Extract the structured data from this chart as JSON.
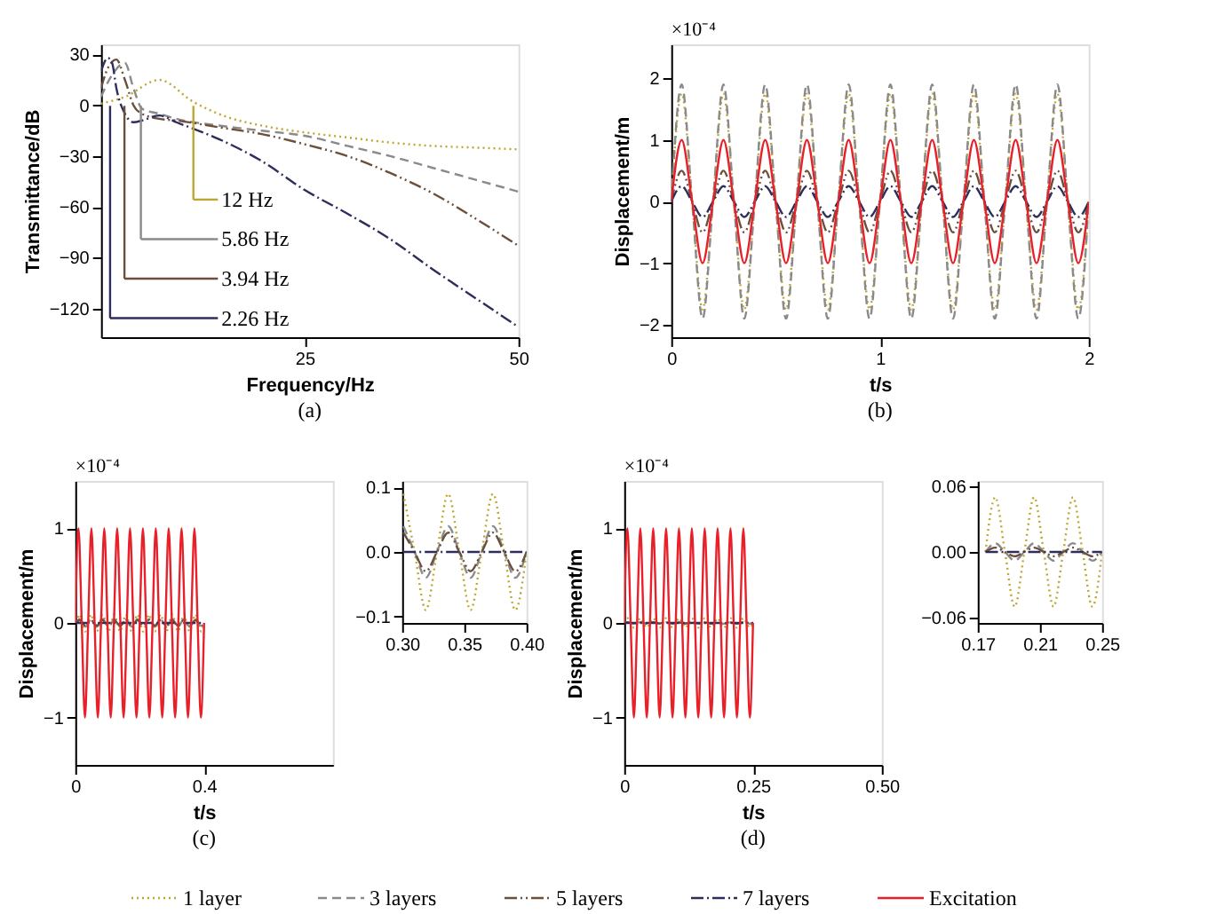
{
  "chart_data": [
    {
      "type": "line",
      "title": "(a)",
      "legend": "bottom",
      "xlabel": "Frequency/Hz",
      "ylabel": "Transmittance/dB",
      "xlim": [
        1.2,
        50
      ],
      "ylim": [
        -137,
        36
      ],
      "xticks": [
        25,
        50
      ],
      "yticks": [
        30,
        0,
        -30,
        -60,
        -90,
        -120
      ],
      "series": [
        {
          "name": "1 layer",
          "color": "#bfa630",
          "line_style": "dotted",
          "x": [
            1.2,
            4,
            8,
            12,
            16,
            20,
            25,
            30,
            35,
            40,
            45,
            50
          ],
          "values": [
            1,
            5,
            15,
            2,
            -7,
            -12,
            -16,
            -19,
            -22,
            -24,
            -25,
            -26
          ]
        },
        {
          "name": "3 layers",
          "color": "#8a8a8a",
          "line_style": "dashed",
          "x": [
            1.2,
            2.5,
            4,
            5,
            6,
            8,
            10,
            15,
            20,
            25,
            30,
            35,
            40,
            45,
            50
          ],
          "values": [
            5,
            18,
            25,
            10,
            -2,
            -5,
            -8,
            -12,
            -15,
            -18,
            -24,
            -30,
            -37,
            -44,
            -51
          ]
        },
        {
          "name": "5 layers",
          "color": "#6b4f3a",
          "line_style": "dashdotdot",
          "x": [
            1.2,
            2,
            3,
            4,
            5,
            6,
            8,
            10,
            15,
            20,
            25,
            30,
            35,
            40,
            45,
            50
          ],
          "values": [
            10,
            22,
            27,
            15,
            0,
            -5,
            -8,
            -9,
            -13,
            -17,
            -23,
            -30,
            -40,
            -52,
            -67,
            -83
          ]
        },
        {
          "name": "7 layers",
          "color": "#2e2e5e",
          "line_style": "dashdot",
          "x": [
            1.2,
            2,
            2.5,
            3,
            4,
            5,
            6,
            8,
            10,
            15,
            20,
            25,
            30,
            35,
            40,
            45,
            50
          ],
          "values": [
            20,
            28,
            25,
            10,
            -5,
            -10,
            -9,
            -6,
            -10,
            -20,
            -33,
            -50,
            -64,
            -79,
            -97,
            -114,
            -131
          ]
        }
      ],
      "ref_lines": [
        {
          "axis": "x",
          "value": 12,
          "label": "12 Hz",
          "color": "#bfa630"
        },
        {
          "axis": "x",
          "value": 5.86,
          "label": "5.86 Hz",
          "color": "#8a8a8a"
        },
        {
          "axis": "x",
          "value": 3.94,
          "label": "3.94 Hz",
          "color": "#6b4f3a"
        },
        {
          "axis": "x",
          "value": 2.26,
          "label": "2.26 Hz",
          "color": "#2e2e5e"
        }
      ]
    },
    {
      "type": "line",
      "title": "(b)",
      "xlabel": "t/s",
      "ylabel": "Displacement/m",
      "xlim": [
        0,
        2
      ],
      "ylim": [
        -2.2,
        2.55
      ],
      "xticks": [
        0,
        1,
        2
      ],
      "yticks": [
        -2,
        -1,
        0,
        1,
        2
      ],
      "annotations": [
        "×10⁻⁴"
      ],
      "x": [
        0,
        0.05,
        0.1,
        0.15,
        0.2,
        0.25,
        0.3,
        0.35,
        0.4,
        0.45,
        0.5,
        0.55,
        0.6,
        0.65,
        0.7,
        0.75,
        0.8,
        0.85,
        0.9,
        0.95,
        1,
        1.05,
        1.1,
        1.15,
        1.2,
        1.25,
        1.3,
        1.35,
        1.4,
        1.45,
        1.5,
        1.55,
        1.6,
        1.65,
        1.7,
        1.75,
        1.8,
        1.85,
        1.9,
        1.95,
        2
      ],
      "series": [
        {
          "name": "1 layer",
          "color": "#bfa630",
          "line_style": "dotted",
          "values": [
            0,
            1.75,
            0,
            -1.75,
            0,
            1.75,
            0,
            -1.75,
            0,
            1.75,
            0,
            -1.75,
            0,
            1.75,
            0,
            -1.75,
            0,
            1.75,
            0,
            -1.75,
            0,
            1.75,
            0,
            -1.75,
            0,
            1.75,
            0,
            -1.75,
            0,
            1.75,
            0,
            -1.75,
            0,
            1.75,
            0,
            -1.75,
            0,
            1.75,
            0,
            -1.75,
            0
          ]
        },
        {
          "name": "3 layers",
          "color": "#8a8a8a",
          "line_style": "dashed",
          "values": [
            0,
            1.9,
            0,
            -1.9,
            0,
            1.9,
            0,
            -1.9,
            0,
            1.9,
            0,
            -1.9,
            0,
            1.9,
            0,
            -1.9,
            0,
            1.9,
            0,
            -1.9,
            0,
            1.9,
            0,
            -1.9,
            0,
            1.9,
            0,
            -1.9,
            0,
            1.9,
            0,
            -1.9,
            0,
            1.9,
            0,
            -1.9,
            0,
            1.9,
            0,
            -1.9,
            0
          ]
        },
        {
          "name": "5 layers",
          "color": "#6b4f3a",
          "line_style": "dashdotdot",
          "values": [
            0,
            0.5,
            0,
            -0.5,
            0,
            0.5,
            0,
            -0.5,
            0,
            0.5,
            0,
            -0.5,
            0,
            0.5,
            0,
            -0.5,
            0,
            0.5,
            0,
            -0.5,
            0,
            0.5,
            0,
            -0.5,
            0,
            0.5,
            0,
            -0.5,
            0,
            0.5,
            0,
            -0.5,
            0,
            0.5,
            0,
            -0.5,
            0,
            0.5,
            0,
            -0.5,
            0
          ]
        },
        {
          "name": "7 layers",
          "color": "#2e2e5e",
          "line_style": "dashdot",
          "values": [
            0,
            0.25,
            0,
            -0.25,
            0,
            0.25,
            0,
            -0.25,
            0,
            0.25,
            0,
            -0.25,
            0,
            0.25,
            0,
            -0.25,
            0,
            0.25,
            0,
            -0.25,
            0,
            0.25,
            0,
            -0.25,
            0,
            0.25,
            0,
            -0.25,
            0,
            0.25,
            0,
            -0.25,
            0,
            0.25,
            0,
            -0.25,
            0,
            0.25,
            0,
            -0.25,
            0
          ]
        },
        {
          "name": "Excitation",
          "color": "#e8202a",
          "line_style": "solid",
          "values": [
            0,
            1,
            0,
            -1,
            0,
            1,
            0,
            -1,
            0,
            1,
            0,
            -1,
            0,
            1,
            0,
            -1,
            0,
            1,
            0,
            -1,
            0,
            1,
            0,
            -1,
            0,
            1,
            0,
            -1,
            0,
            1,
            0,
            -1,
            0,
            1,
            0,
            -1,
            0,
            1,
            0,
            -1,
            0
          ]
        }
      ]
    },
    {
      "type": "line",
      "title": "(c)",
      "xlabel": "t/s",
      "ylabel": "Displacement/m",
      "xlim": [
        0,
        0.8
      ],
      "ylim": [
        -1.5,
        1.5
      ],
      "xticks": [
        0,
        0.4
      ],
      "yticks": [
        -1,
        0,
        1
      ],
      "annotations": [
        "×10⁻⁴"
      ],
      "series": [
        {
          "name": "1 layer",
          "color": "#bfa630",
          "line_style": "dotted",
          "x": [
            0.004,
            0.013,
            0.022,
            0.031,
            0.04,
            0.049,
            0.058,
            0.067,
            0.076,
            0.085,
            0.094,
            0.103,
            0.112,
            0.121,
            0.13,
            0.139,
            0.148,
            0.157,
            0.166,
            0.175,
            0.184,
            0.193,
            0.202,
            0.211,
            0.22,
            0.229,
            0.238,
            0.247,
            0.256,
            0.265,
            0.274,
            0.283,
            0.292,
            0.301,
            0.31,
            0.319,
            0.328,
            0.337,
            0.346,
            0.355,
            0.364,
            0.373,
            0.382,
            0.391,
            0.4
          ],
          "values": [
            0,
            0.09,
            0,
            -0.09,
            0,
            0.09,
            0,
            -0.09,
            0,
            0.09,
            0,
            -0.09,
            0,
            0.09,
            0,
            -0.09,
            0,
            0.09,
            0,
            -0.09,
            0,
            0.09,
            0,
            -0.09,
            0,
            0.09,
            0,
            -0.09,
            0,
            0.09,
            0,
            -0.09,
            0,
            0.09,
            0,
            -0.09,
            0,
            0.09,
            0,
            -0.09,
            0,
            0.09,
            0,
            -0.09,
            0
          ]
        },
        {
          "name": "3 layers",
          "color": "#8a8a8a",
          "line_style": "dashed",
          "x": [
            0.004,
            0.013,
            0.022,
            0.031,
            0.04,
            0.049,
            0.058,
            0.067,
            0.076,
            0.085,
            0.094,
            0.103,
            0.112,
            0.121,
            0.13,
            0.139,
            0.148,
            0.157,
            0.166,
            0.175,
            0.184,
            0.193,
            0.202,
            0.211,
            0.22,
            0.229,
            0.238,
            0.247,
            0.256,
            0.265,
            0.274,
            0.283,
            0.292,
            0.301,
            0.31,
            0.319,
            0.328,
            0.337,
            0.346,
            0.355,
            0.364,
            0.373,
            0.382,
            0.391,
            0.4
          ],
          "values": [
            0,
            0.04,
            0,
            -0.04,
            0,
            0.04,
            0,
            -0.04,
            0,
            0.04,
            0,
            -0.04,
            0,
            0.04,
            0,
            -0.04,
            0,
            0.04,
            0,
            -0.04,
            0,
            0.04,
            0,
            -0.04,
            0,
            0.04,
            0,
            -0.04,
            0,
            0.04,
            0,
            -0.04,
            0,
            0.04,
            0,
            -0.04,
            0,
            0.04,
            0,
            -0.04,
            0,
            0.04,
            0,
            -0.04,
            0
          ]
        },
        {
          "name": "5 layers",
          "color": "#6b4f3a",
          "line_style": "dashdotdot",
          "x": [
            0.004,
            0.013,
            0.022,
            0.031,
            0.04,
            0.049,
            0.058,
            0.067,
            0.076,
            0.085,
            0.094,
            0.103,
            0.112,
            0.121,
            0.13,
            0.139,
            0.148,
            0.157,
            0.166,
            0.175,
            0.184,
            0.193,
            0.202,
            0.211,
            0.22,
            0.229,
            0.238,
            0.247,
            0.256,
            0.265,
            0.274,
            0.283,
            0.292,
            0.301,
            0.31,
            0.319,
            0.328,
            0.337,
            0.346,
            0.355,
            0.364,
            0.373,
            0.382,
            0.391,
            0.4
          ],
          "values": [
            0,
            0.03,
            0,
            -0.03,
            0,
            0.03,
            0,
            -0.03,
            0,
            0.03,
            0,
            -0.03,
            0,
            0.03,
            0,
            -0.03,
            0,
            0.03,
            0,
            -0.03,
            0,
            0.03,
            0,
            -0.03,
            0,
            0.03,
            0,
            -0.03,
            0,
            0.03,
            0,
            -0.03,
            0,
            0.03,
            0,
            -0.03,
            0,
            0.03,
            0,
            -0.03,
            0,
            0.03,
            0,
            -0.03,
            0
          ]
        },
        {
          "name": "7 layers",
          "color": "#2e2e5e",
          "line_style": "dashdot",
          "x": [
            0.004,
            0.4
          ],
          "values": [
            0,
            0
          ]
        },
        {
          "name": "Excitation",
          "color": "#e8202a",
          "line_style": "solid",
          "x": [
            0,
            0.01,
            0.02,
            0.03,
            0.04,
            0.05,
            0.06,
            0.07,
            0.08,
            0.09,
            0.1,
            0.11,
            0.12,
            0.13,
            0.14,
            0.15,
            0.16,
            0.17,
            0.18,
            0.19,
            0.2,
            0.21,
            0.22,
            0.23,
            0.24,
            0.25,
            0.26,
            0.27,
            0.28,
            0.29,
            0.3,
            0.31,
            0.32,
            0.33,
            0.34,
            0.35,
            0.36,
            0.37,
            0.38,
            0.39,
            0.4
          ],
          "values": [
            0,
            1,
            0,
            -1,
            0,
            1,
            0,
            -1,
            0,
            1,
            0,
            -1,
            0,
            1,
            0,
            -1,
            0,
            1,
            0,
            -1,
            0,
            1,
            0,
            -1,
            0,
            1,
            0,
            -1,
            0,
            1,
            0,
            -1,
            0,
            1,
            0,
            -1,
            0,
            1,
            0,
            -1,
            0
          ]
        }
      ]
    },
    {
      "type": "line",
      "xlim": [
        0.3,
        0.4
      ],
      "ylim": [
        -0.11,
        0.11
      ],
      "xticks": [
        {
          "value": 0.3,
          "label": "0.30"
        },
        0.35,
        {
          "value": 0.4,
          "label": "0.40"
        }
      ],
      "yticks": [
        -0.1,
        {
          "value": 0,
          "label": "0.0"
        },
        0.1
      ],
      "x": [
        0.301,
        0.31,
        0.319,
        0.328,
        0.337,
        0.346,
        0.355,
        0.364,
        0.373,
        0.382,
        0.391,
        0.4
      ],
      "series": [
        {
          "name": "1 layer",
          "color": "#bfa630",
          "line_style": "dotted",
          "values": [
            0.09,
            0,
            -0.09,
            0,
            0.09,
            0,
            -0.09,
            0,
            0.09,
            0,
            -0.09,
            0
          ]
        },
        {
          "name": "3 layers",
          "color": "#8a8a8a",
          "line_style": "dashed",
          "values": [
            0.04,
            0,
            -0.04,
            0,
            0.04,
            0,
            -0.04,
            0,
            0.04,
            0,
            -0.04,
            0
          ]
        },
        {
          "name": "5 layers",
          "color": "#6b4f3a",
          "line_style": "dashdotdot",
          "values": [
            0.03,
            0,
            -0.03,
            0,
            0.03,
            0,
            -0.03,
            0,
            0.03,
            0,
            -0.03,
            0
          ]
        },
        {
          "name": "7 layers",
          "color": "#2e2e5e",
          "line_style": "dashdot",
          "values": [
            0,
            0,
            0,
            0,
            0,
            0,
            0,
            0,
            0,
            0,
            0,
            0
          ]
        }
      ]
    },
    {
      "type": "line",
      "title": "(d)",
      "xlabel": "t/s",
      "ylabel": "Displacement/m",
      "xlim": [
        0,
        0.5
      ],
      "ylim": [
        -1.5,
        1.5
      ],
      "xticks": [
        0,
        0.25,
        {
          "value": 0.5,
          "label": "0.50"
        }
      ],
      "yticks": [
        -1,
        0,
        1
      ],
      "annotations": [
        "×10⁻⁴"
      ],
      "x": [
        0,
        0.00625,
        0.0125,
        0.01875,
        0.025,
        0.03125,
        0.0375,
        0.04375,
        0.05,
        0.05625,
        0.0625,
        0.06875,
        0.075,
        0.08125,
        0.0875,
        0.09375,
        0.1,
        0.10625,
        0.1125,
        0.11875,
        0.125,
        0.13125,
        0.1375,
        0.14375,
        0.15,
        0.15625,
        0.1625,
        0.16875,
        0.175,
        0.18125,
        0.1875,
        0.19375,
        0.2,
        0.20625,
        0.2125,
        0.21875,
        0.225,
        0.23125,
        0.2375,
        0.24375,
        0.25
      ],
      "series": [
        {
          "name": "1 layer",
          "color": "#bfa630",
          "line_style": "dotted",
          "values": [
            0,
            0.05,
            0,
            -0.05,
            0,
            0.05,
            0,
            -0.05,
            0,
            0.05,
            0,
            -0.05,
            0,
            0.05,
            0,
            -0.05,
            0,
            0.05,
            0,
            -0.05,
            0,
            0.05,
            0,
            -0.05,
            0,
            0.05,
            0,
            -0.05,
            0,
            0.05,
            0,
            -0.05,
            0,
            0.05,
            0,
            -0.05,
            0,
            0.05,
            0,
            -0.05,
            0
          ]
        },
        {
          "name": "3 layers",
          "color": "#8a8a8a",
          "line_style": "dashed",
          "values": [
            0,
            0.008,
            0,
            -0.008,
            0,
            0.008,
            0,
            -0.008,
            0,
            0.008,
            0,
            -0.008,
            0,
            0.008,
            0,
            -0.008,
            0,
            0.008,
            0,
            -0.008,
            0,
            0.008,
            0,
            -0.008,
            0,
            0.008,
            0,
            -0.008,
            0,
            0.008,
            0,
            -0.008,
            0,
            0.008,
            0,
            -0.008,
            0,
            0.008,
            0,
            -0.008,
            0
          ]
        },
        {
          "name": "5 layers",
          "color": "#6b4f3a",
          "line_style": "dashdotdot",
          "values": [
            0,
            0.004,
            0,
            -0.004,
            0,
            0.004,
            0,
            -0.004,
            0,
            0.004,
            0,
            -0.004,
            0,
            0.004,
            0,
            -0.004,
            0,
            0.004,
            0,
            -0.004,
            0,
            0.004,
            0,
            -0.004,
            0,
            0.004,
            0,
            -0.004,
            0,
            0.004,
            0,
            -0.004,
            0,
            0.004,
            0,
            -0.004,
            0,
            0.004,
            0,
            -0.004,
            0
          ]
        },
        {
          "name": "7 layers",
          "color": "#2e2e5e",
          "line_style": "dashdot",
          "values": [
            0,
            0,
            0,
            0,
            0,
            0,
            0,
            0,
            0,
            0,
            0,
            0,
            0,
            0,
            0,
            0,
            0,
            0,
            0,
            0,
            0,
            0,
            0,
            0,
            0,
            0,
            0,
            0,
            0,
            0,
            0,
            0,
            0,
            0,
            0,
            0,
            0,
            0,
            0,
            0,
            0
          ]
        },
        {
          "name": "Excitation",
          "color": "#e8202a",
          "line_style": "solid",
          "values": [
            0,
            1,
            0,
            -1,
            0,
            1,
            0,
            -1,
            0,
            1,
            0,
            -1,
            0,
            1,
            0,
            -1,
            0,
            1,
            0,
            -1,
            0,
            1,
            0,
            -1,
            0,
            1,
            0,
            -1,
            0,
            1,
            0,
            -1,
            0,
            1,
            0,
            -1,
            0,
            1,
            0,
            -1,
            0
          ]
        }
      ]
    },
    {
      "type": "line",
      "xlim": [
        0.17,
        0.25
      ],
      "ylim": [
        -0.065,
        0.065
      ],
      "xticks": [
        0.17,
        0.21,
        0.25
      ],
      "yticks": [
        -0.06,
        {
          "value": 0,
          "label": "0.00"
        },
        0.06
      ],
      "x": [
        0.175,
        0.18125,
        0.1875,
        0.19375,
        0.2,
        0.20625,
        0.2125,
        0.21875,
        0.225,
        0.23125,
        0.2375,
        0.24375,
        0.25
      ],
      "series": [
        {
          "name": "1 layer",
          "color": "#bfa630",
          "line_style": "dotted",
          "values": [
            0,
            0.05,
            0,
            -0.05,
            0,
            0.05,
            0,
            -0.05,
            0,
            0.05,
            0,
            -0.05,
            0
          ]
        },
        {
          "name": "3 layers",
          "color": "#8a8a8a",
          "line_style": "dashed",
          "values": [
            0,
            0.008,
            0,
            -0.008,
            0,
            0.008,
            0,
            -0.008,
            0,
            0.008,
            0,
            -0.008,
            0
          ]
        },
        {
          "name": "5 layers",
          "color": "#6b4f3a",
          "line_style": "dashdotdot",
          "values": [
            0,
            0.004,
            0,
            -0.004,
            0,
            0.004,
            0,
            -0.004,
            0,
            0.004,
            0,
            -0.004,
            0
          ]
        },
        {
          "name": "7 layers",
          "color": "#2e2e5e",
          "line_style": "dashdot",
          "values": [
            0,
            0,
            0,
            0,
            0,
            0,
            0,
            0,
            0,
            0,
            0,
            0,
            0
          ]
        }
      ]
    }
  ]
}
